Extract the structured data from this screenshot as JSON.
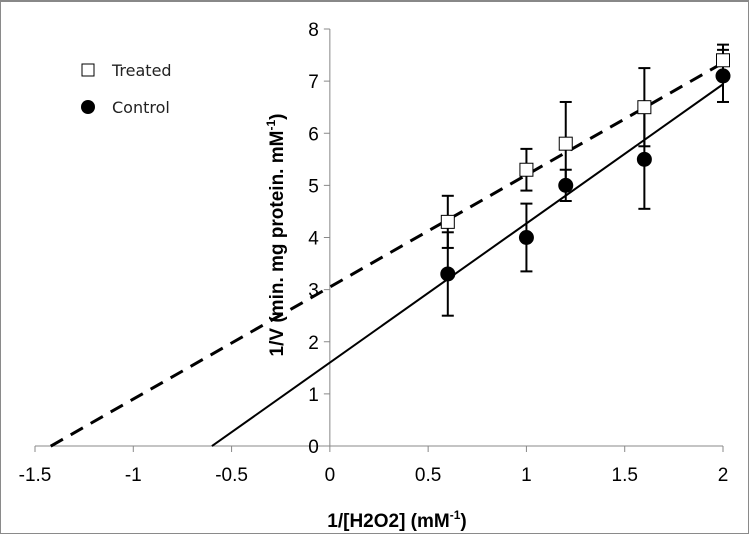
{
  "chart_data": {
    "type": "scatter",
    "title": "",
    "xlabel": "1/[H2O2]  (mM",
    "xlabel_sup": "-1",
    "xlabel_end": ")",
    "ylabel": "1/V (min. mg protein. mM",
    "ylabel_sup": "-1",
    "ylabel_end": ")",
    "xlim": [
      -1.5,
      2
    ],
    "ylim": [
      0,
      8
    ],
    "x_ticks": [
      -1.5,
      -1,
      -0.5,
      0,
      0.5,
      1,
      1.5,
      2
    ],
    "x_tick_labels": [
      "-1.5",
      "-1",
      "-0.5",
      "0",
      "0.5",
      "1",
      "1.5",
      "2"
    ],
    "y_ticks": [
      0,
      1,
      2,
      3,
      4,
      5,
      6,
      7,
      8
    ],
    "y_tick_labels": [
      "0",
      "1",
      "2",
      "3",
      "4",
      "5",
      "6",
      "7",
      "8"
    ],
    "grid": false,
    "legend_position": "top-left",
    "series": [
      {
        "name": "Treated",
        "marker": "open-square",
        "line_style": "dashed",
        "x": [
          0.6,
          1.0,
          1.2,
          1.6,
          2.0
        ],
        "y": [
          4.3,
          5.3,
          5.8,
          6.5,
          7.4
        ],
        "error": [
          0.5,
          0.4,
          0.8,
          0.75,
          0.3
        ],
        "fit": {
          "slope": 2.15,
          "intercept": 3.05,
          "x_range": [
            -1.42,
            2.0
          ]
        }
      },
      {
        "name": "Control",
        "marker": "filled-circle",
        "line_style": "solid",
        "x": [
          0.6,
          1.0,
          1.2,
          1.6,
          2.0
        ],
        "y": [
          3.3,
          4.0,
          5.0,
          5.5,
          7.1
        ],
        "error": [
          0.8,
          0.65,
          0.3,
          0.95,
          0.5
        ],
        "fit": {
          "slope": 2.67,
          "intercept": 1.6,
          "x_range": [
            -0.6,
            2.0
          ]
        }
      }
    ]
  }
}
